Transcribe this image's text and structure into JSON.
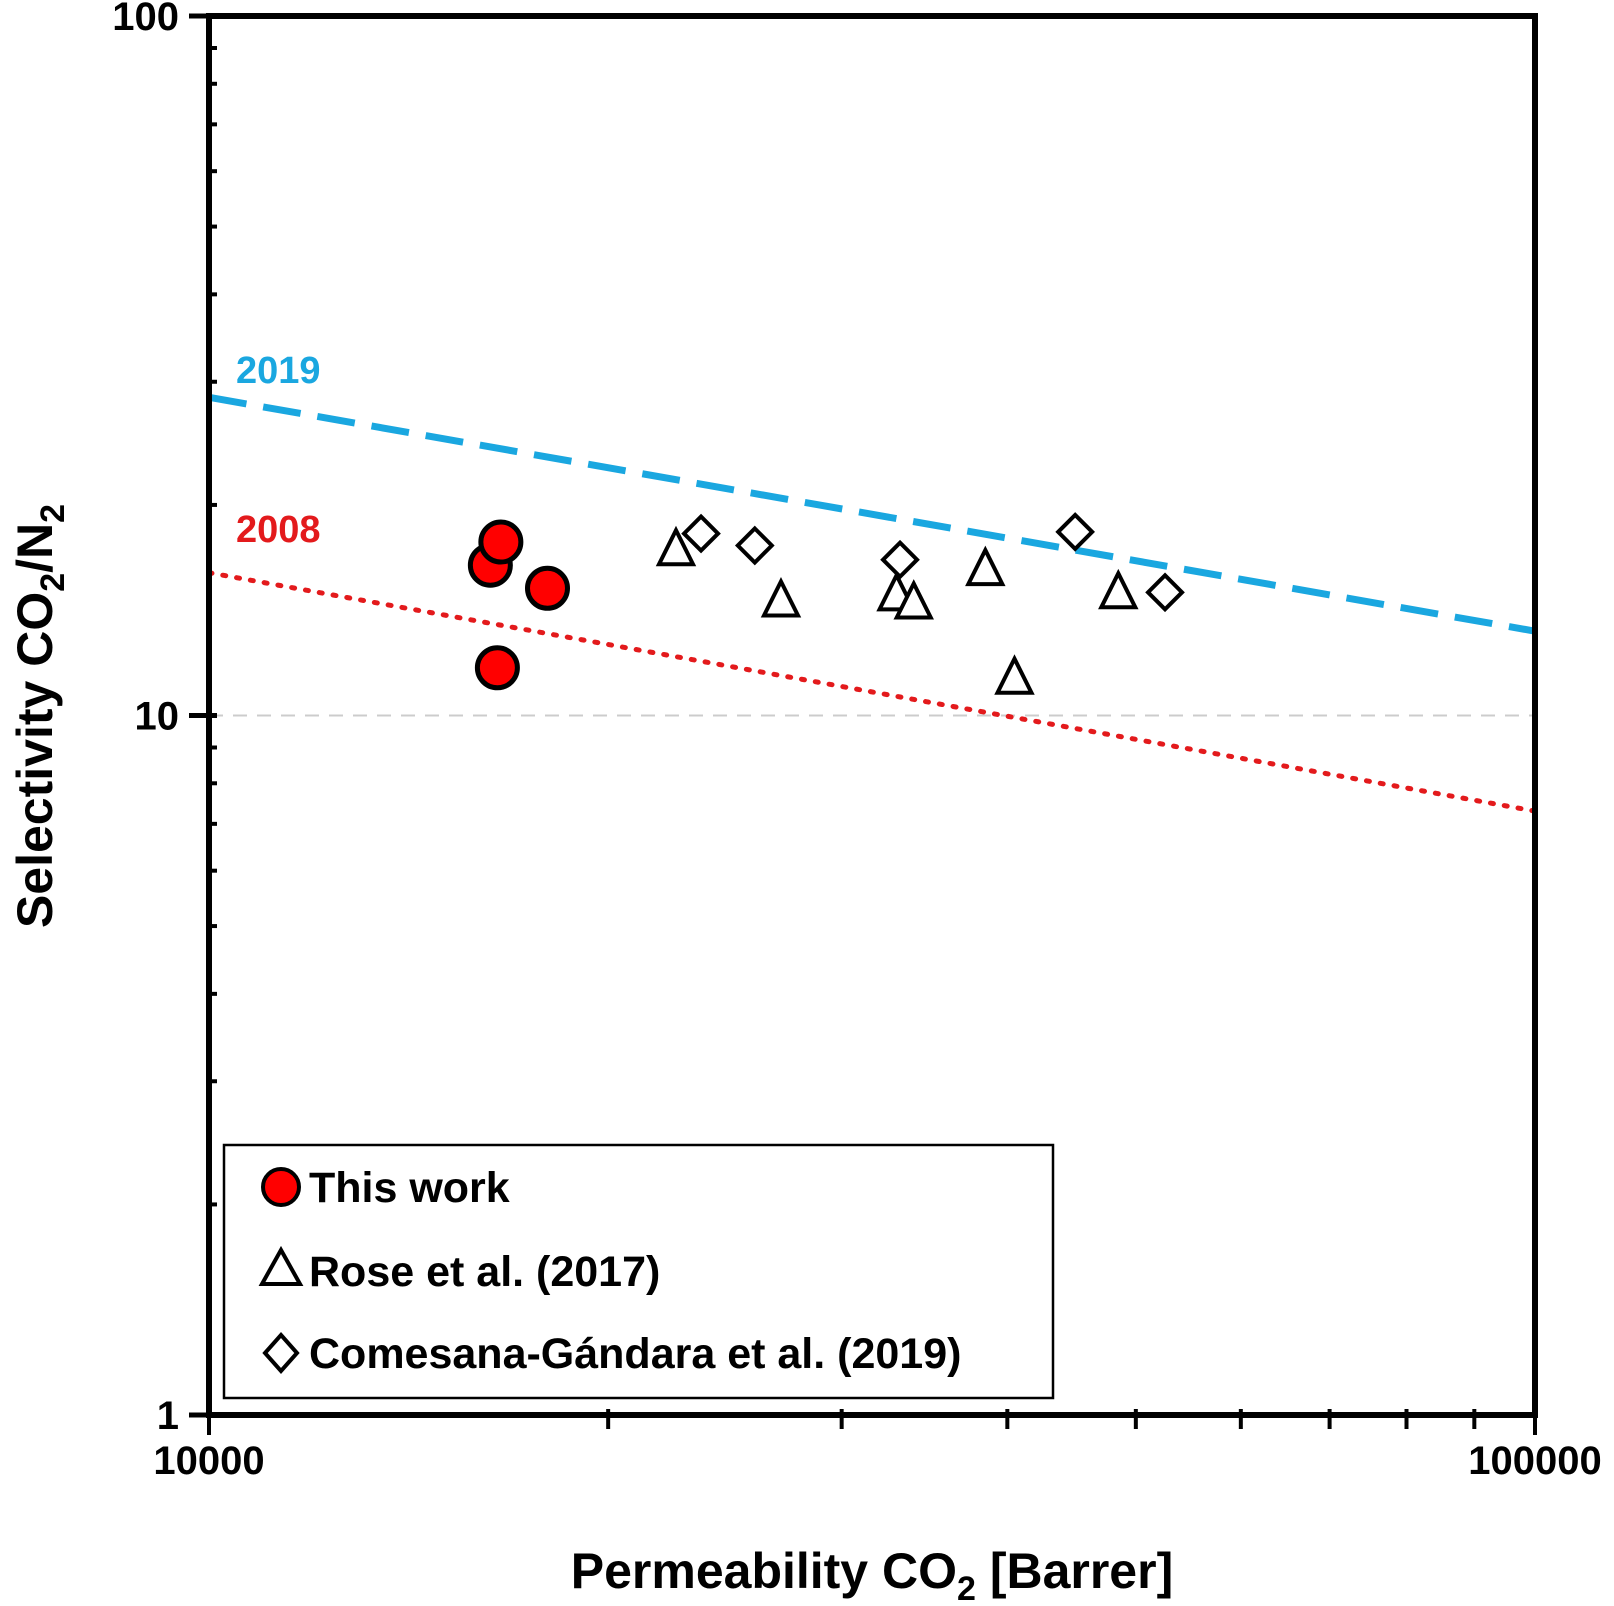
{
  "chart_data": {
    "type": "scatter",
    "xscale": "log",
    "yscale": "log",
    "xlim": [
      10000,
      100000
    ],
    "ylim": [
      1,
      100
    ],
    "x_ticks": [
      "10000",
      "100000"
    ],
    "y_ticks": [
      "1",
      "10",
      "100"
    ],
    "xlabel": {
      "main": "Permeability CO",
      "sub": "2",
      "rest": " [Barrer]"
    },
    "ylabel": {
      "a": "Selectivity  CO",
      "sub1": "2",
      "b": "/N",
      "sub2": "2"
    },
    "reference_lines": [
      {
        "label": "2019",
        "color": "#1AA7E0",
        "style": "dashed",
        "points": [
          [
            10000,
            28.5
          ],
          [
            100000,
            13.2
          ]
        ]
      },
      {
        "label": "2008",
        "color": "#E31A1C",
        "style": "dotted",
        "points": [
          [
            10000,
            16.0
          ],
          [
            100000,
            7.3
          ]
        ]
      }
    ],
    "series": [
      {
        "name": "This work",
        "marker": "circle",
        "color": "#FF0000",
        "points": [
          [
            16300,
            16.4
          ],
          [
            16600,
            17.7
          ],
          [
            16500,
            11.7
          ],
          [
            18000,
            15.2
          ]
        ]
      },
      {
        "name": "Rose et al. (2017)",
        "marker": "triangle",
        "color": "#FFFFFF",
        "points": [
          [
            22500,
            17.4
          ],
          [
            27000,
            14.7
          ],
          [
            33000,
            15.0
          ],
          [
            34000,
            14.6
          ],
          [
            38500,
            16.3
          ],
          [
            40500,
            11.4
          ],
          [
            48500,
            15.1
          ]
        ]
      },
      {
        "name": "Comesana-Gándara et al. (2019)",
        "marker": "diamond",
        "color": "#FFFFFF",
        "points": [
          [
            23500,
            18.2
          ],
          [
            25800,
            17.5
          ],
          [
            33200,
            16.7
          ],
          [
            45000,
            18.3
          ],
          [
            52600,
            15.0
          ]
        ]
      }
    ],
    "grid": false,
    "dashed_gridline_at_y": 10,
    "legend": {
      "placement": "bottom-left",
      "entries": [
        "This work",
        "Rose et al. (2017)",
        "Comesana-Gándara et al. (2019)"
      ]
    }
  }
}
